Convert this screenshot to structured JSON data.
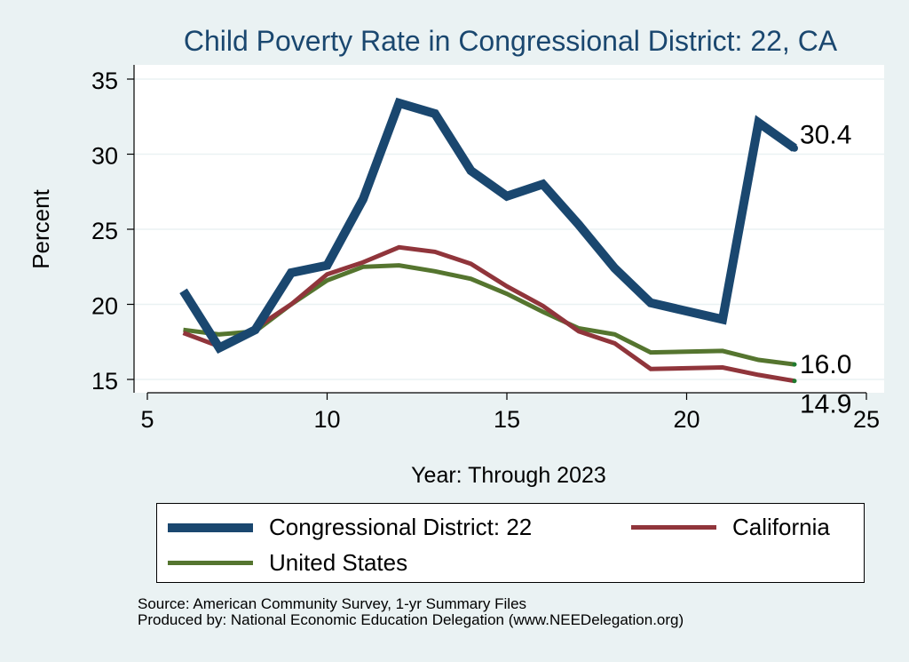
{
  "chart_data": {
    "type": "line",
    "title": "Child Poverty Rate in Congressional District:  22, CA",
    "xlabel": "Year: Through 2023",
    "ylabel": "Percent",
    "xlim": [
      5,
      25
    ],
    "ylim": [
      15,
      35
    ],
    "xticks": [
      "5",
      "10",
      "15",
      "20",
      "25"
    ],
    "yticks": [
      "15",
      "20",
      "25",
      "30",
      "35"
    ],
    "grid": true,
    "legend_position": "bottom",
    "series": [
      {
        "name": "Congressional District:  22",
        "color": "#1a476f",
        "width": 10,
        "x": [
          6,
          7,
          8,
          9,
          10,
          11,
          12,
          13,
          14,
          15,
          16,
          17,
          18,
          19,
          21,
          22,
          23
        ],
        "values": [
          20.9,
          17.1,
          18.3,
          22.1,
          22.6,
          27.0,
          33.4,
          32.7,
          28.9,
          27.2,
          28.0,
          25.3,
          22.4,
          20.1,
          19.0,
          32.1,
          30.4
        ],
        "end_label": "30.4"
      },
      {
        "name": "California",
        "color": "#90353b",
        "width": 5,
        "x": [
          6,
          7,
          8,
          9,
          10,
          11,
          12,
          13,
          14,
          15,
          16,
          17,
          18,
          19,
          21,
          22,
          23
        ],
        "values": [
          18.1,
          17.2,
          18.4,
          20.0,
          22.0,
          22.8,
          23.8,
          23.5,
          22.7,
          21.2,
          19.9,
          18.2,
          17.4,
          15.7,
          15.8,
          15.3,
          14.9
        ],
        "end_label": "14.9"
      },
      {
        "name": "United States",
        "color": "#55752f",
        "width": 5,
        "x": [
          6,
          7,
          8,
          9,
          10,
          11,
          12,
          13,
          14,
          15,
          16,
          17,
          18,
          19,
          21,
          22,
          23
        ],
        "values": [
          18.3,
          18.0,
          18.2,
          20.0,
          21.6,
          22.5,
          22.6,
          22.2,
          21.7,
          20.7,
          19.5,
          18.4,
          18.0,
          16.8,
          16.9,
          16.3,
          16.0
        ],
        "end_label": "16.0"
      }
    ]
  },
  "footer": {
    "source": "Source: American Community Survey, 1-yr Summary Files",
    "produced_by": "Produced by: National Economic Education Delegation (www.NEEDelegation.org)"
  }
}
